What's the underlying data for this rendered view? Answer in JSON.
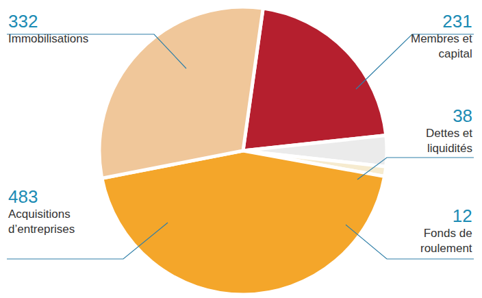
{
  "chart_data": {
    "type": "pie",
    "categories": [
      "Membres et capital",
      "Dettes et liquidités",
      "Fonds de roulement",
      "Acquisitions d’entreprises",
      "Immobilisations"
    ],
    "values": [
      231,
      38,
      12,
      483,
      332
    ],
    "colors": [
      "#b51f2e",
      "#ebebeb",
      "#f6ebcf",
      "#f4a62a",
      "#f0c79a"
    ],
    "data_labels": true
  }
}
